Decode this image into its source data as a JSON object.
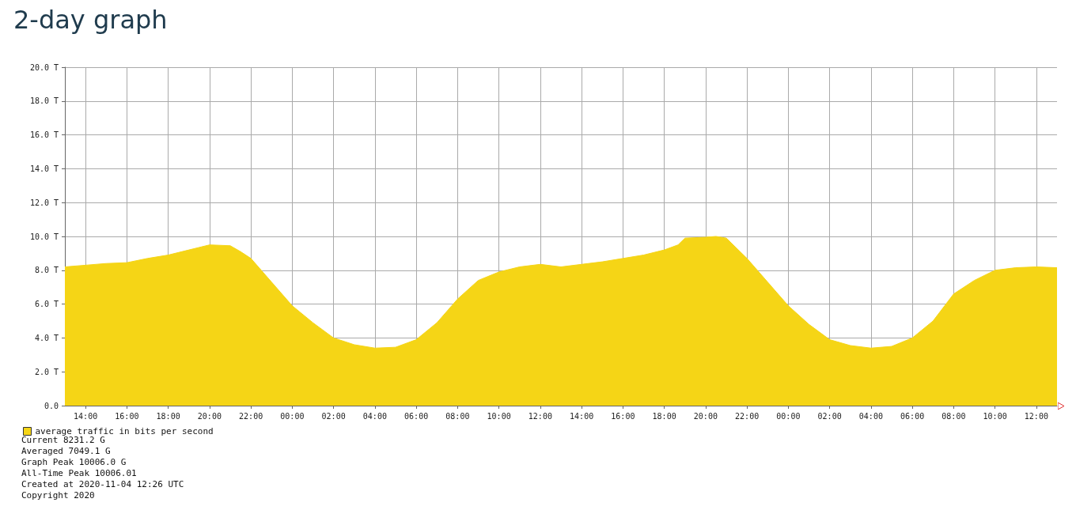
{
  "chart_data": {
    "type": "area",
    "title": "2-day graph",
    "x": [
      "2020-11-02T13:00",
      "2020-11-02T14:00",
      "2020-11-02T15:00",
      "2020-11-02T16:00",
      "2020-11-02T17:00",
      "2020-11-02T18:00",
      "2020-11-02T19:00",
      "2020-11-02T20:00",
      "2020-11-02T21:00",
      "2020-11-02T21:30",
      "2020-11-02T22:00",
      "2020-11-02T23:00",
      "2020-11-03T00:00",
      "2020-11-03T01:00",
      "2020-11-03T02:00",
      "2020-11-03T03:00",
      "2020-11-03T04:00",
      "2020-11-03T05:00",
      "2020-11-03T06:00",
      "2020-11-03T07:00",
      "2020-11-03T08:00",
      "2020-11-03T09:00",
      "2020-11-03T10:00",
      "2020-11-03T11:00",
      "2020-11-03T12:00",
      "2020-11-03T13:00",
      "2020-11-03T14:00",
      "2020-11-03T15:00",
      "2020-11-03T16:00",
      "2020-11-03T17:00",
      "2020-11-03T18:00",
      "2020-11-03T18:40",
      "2020-11-03T19:00",
      "2020-11-03T20:00",
      "2020-11-03T20:30",
      "2020-11-03T21:00",
      "2020-11-03T22:00",
      "2020-11-03T23:00",
      "2020-11-04T00:00",
      "2020-11-04T01:00",
      "2020-11-04T02:00",
      "2020-11-04T03:00",
      "2020-11-04T04:00",
      "2020-11-04T05:00",
      "2020-11-04T06:00",
      "2020-11-04T07:00",
      "2020-11-04T08:00",
      "2020-11-04T09:00",
      "2020-11-04T10:00",
      "2020-11-04T11:00",
      "2020-11-04T12:00",
      "2020-11-04T13:00"
    ],
    "series": [
      {
        "name": "average traffic in bits per second",
        "color": "#f5d516",
        "values": [
          8.2,
          8.3,
          8.4,
          8.45,
          8.7,
          8.9,
          9.2,
          9.5,
          9.45,
          9.1,
          8.7,
          7.3,
          5.9,
          4.9,
          4.0,
          3.6,
          3.4,
          3.45,
          3.9,
          4.9,
          6.3,
          7.4,
          7.9,
          8.2,
          8.35,
          8.2,
          8.35,
          8.5,
          8.7,
          8.9,
          9.2,
          9.5,
          9.9,
          9.95,
          10.0,
          9.9,
          8.7,
          7.3,
          5.9,
          4.8,
          3.9,
          3.55,
          3.4,
          3.5,
          4.0,
          5.0,
          6.6,
          7.4,
          8.0,
          8.15,
          8.2,
          8.15
        ]
      }
    ],
    "xlim": [
      "2020-11-02T13:00",
      "2020-11-04T13:00"
    ],
    "xticks": [
      {
        "value": "2020-11-02T14:00",
        "label": "14:00"
      },
      {
        "value": "2020-11-02T16:00",
        "label": "16:00"
      },
      {
        "value": "2020-11-02T18:00",
        "label": "18:00"
      },
      {
        "value": "2020-11-02T20:00",
        "label": "20:00"
      },
      {
        "value": "2020-11-02T22:00",
        "label": "22:00"
      },
      {
        "value": "2020-11-03T00:00",
        "label": "00:00"
      },
      {
        "value": "2020-11-03T02:00",
        "label": "02:00"
      },
      {
        "value": "2020-11-03T04:00",
        "label": "04:00"
      },
      {
        "value": "2020-11-03T06:00",
        "label": "06:00"
      },
      {
        "value": "2020-11-03T08:00",
        "label": "08:00"
      },
      {
        "value": "2020-11-03T10:00",
        "label": "10:00"
      },
      {
        "value": "2020-11-03T12:00",
        "label": "12:00"
      },
      {
        "value": "2020-11-03T14:00",
        "label": "14:00"
      },
      {
        "value": "2020-11-03T16:00",
        "label": "16:00"
      },
      {
        "value": "2020-11-03T18:00",
        "label": "18:00"
      },
      {
        "value": "2020-11-03T20:00",
        "label": "20:00"
      },
      {
        "value": "2020-11-03T22:00",
        "label": "22:00"
      },
      {
        "value": "2020-11-04T00:00",
        "label": "00:00"
      },
      {
        "value": "2020-11-04T02:00",
        "label": "02:00"
      },
      {
        "value": "2020-11-04T04:00",
        "label": "04:00"
      },
      {
        "value": "2020-11-04T06:00",
        "label": "06:00"
      },
      {
        "value": "2020-11-04T08:00",
        "label": "08:00"
      },
      {
        "value": "2020-11-04T10:00",
        "label": "10:00"
      },
      {
        "value": "2020-11-04T12:00",
        "label": "12:00"
      }
    ],
    "ylim": [
      0,
      20
    ],
    "yticks": [
      {
        "value": 0,
        "label": "0.0"
      },
      {
        "value": 2,
        "label": "2.0 T"
      },
      {
        "value": 4,
        "label": "4.0 T"
      },
      {
        "value": 6,
        "label": "6.0 T"
      },
      {
        "value": 8,
        "label": "8.0 T"
      },
      {
        "value": 10,
        "label": "10.0 T"
      },
      {
        "value": 12,
        "label": "12.0 T"
      },
      {
        "value": 14,
        "label": "14.0 T"
      },
      {
        "value": 16,
        "label": "16.0 T"
      },
      {
        "value": 18,
        "label": "18.0 T"
      },
      {
        "value": 20,
        "label": "20.0 T"
      }
    ],
    "grid": true,
    "legend": "bottom left",
    "annotations": [
      "Current 8231.2 G",
      "Averaged 7049.1 G",
      "Graph Peak 10006.0 G",
      "All-Time Peak 10006.01",
      "Created at 2020-11-04 12:26 UTC",
      "Copyright 2020"
    ]
  }
}
